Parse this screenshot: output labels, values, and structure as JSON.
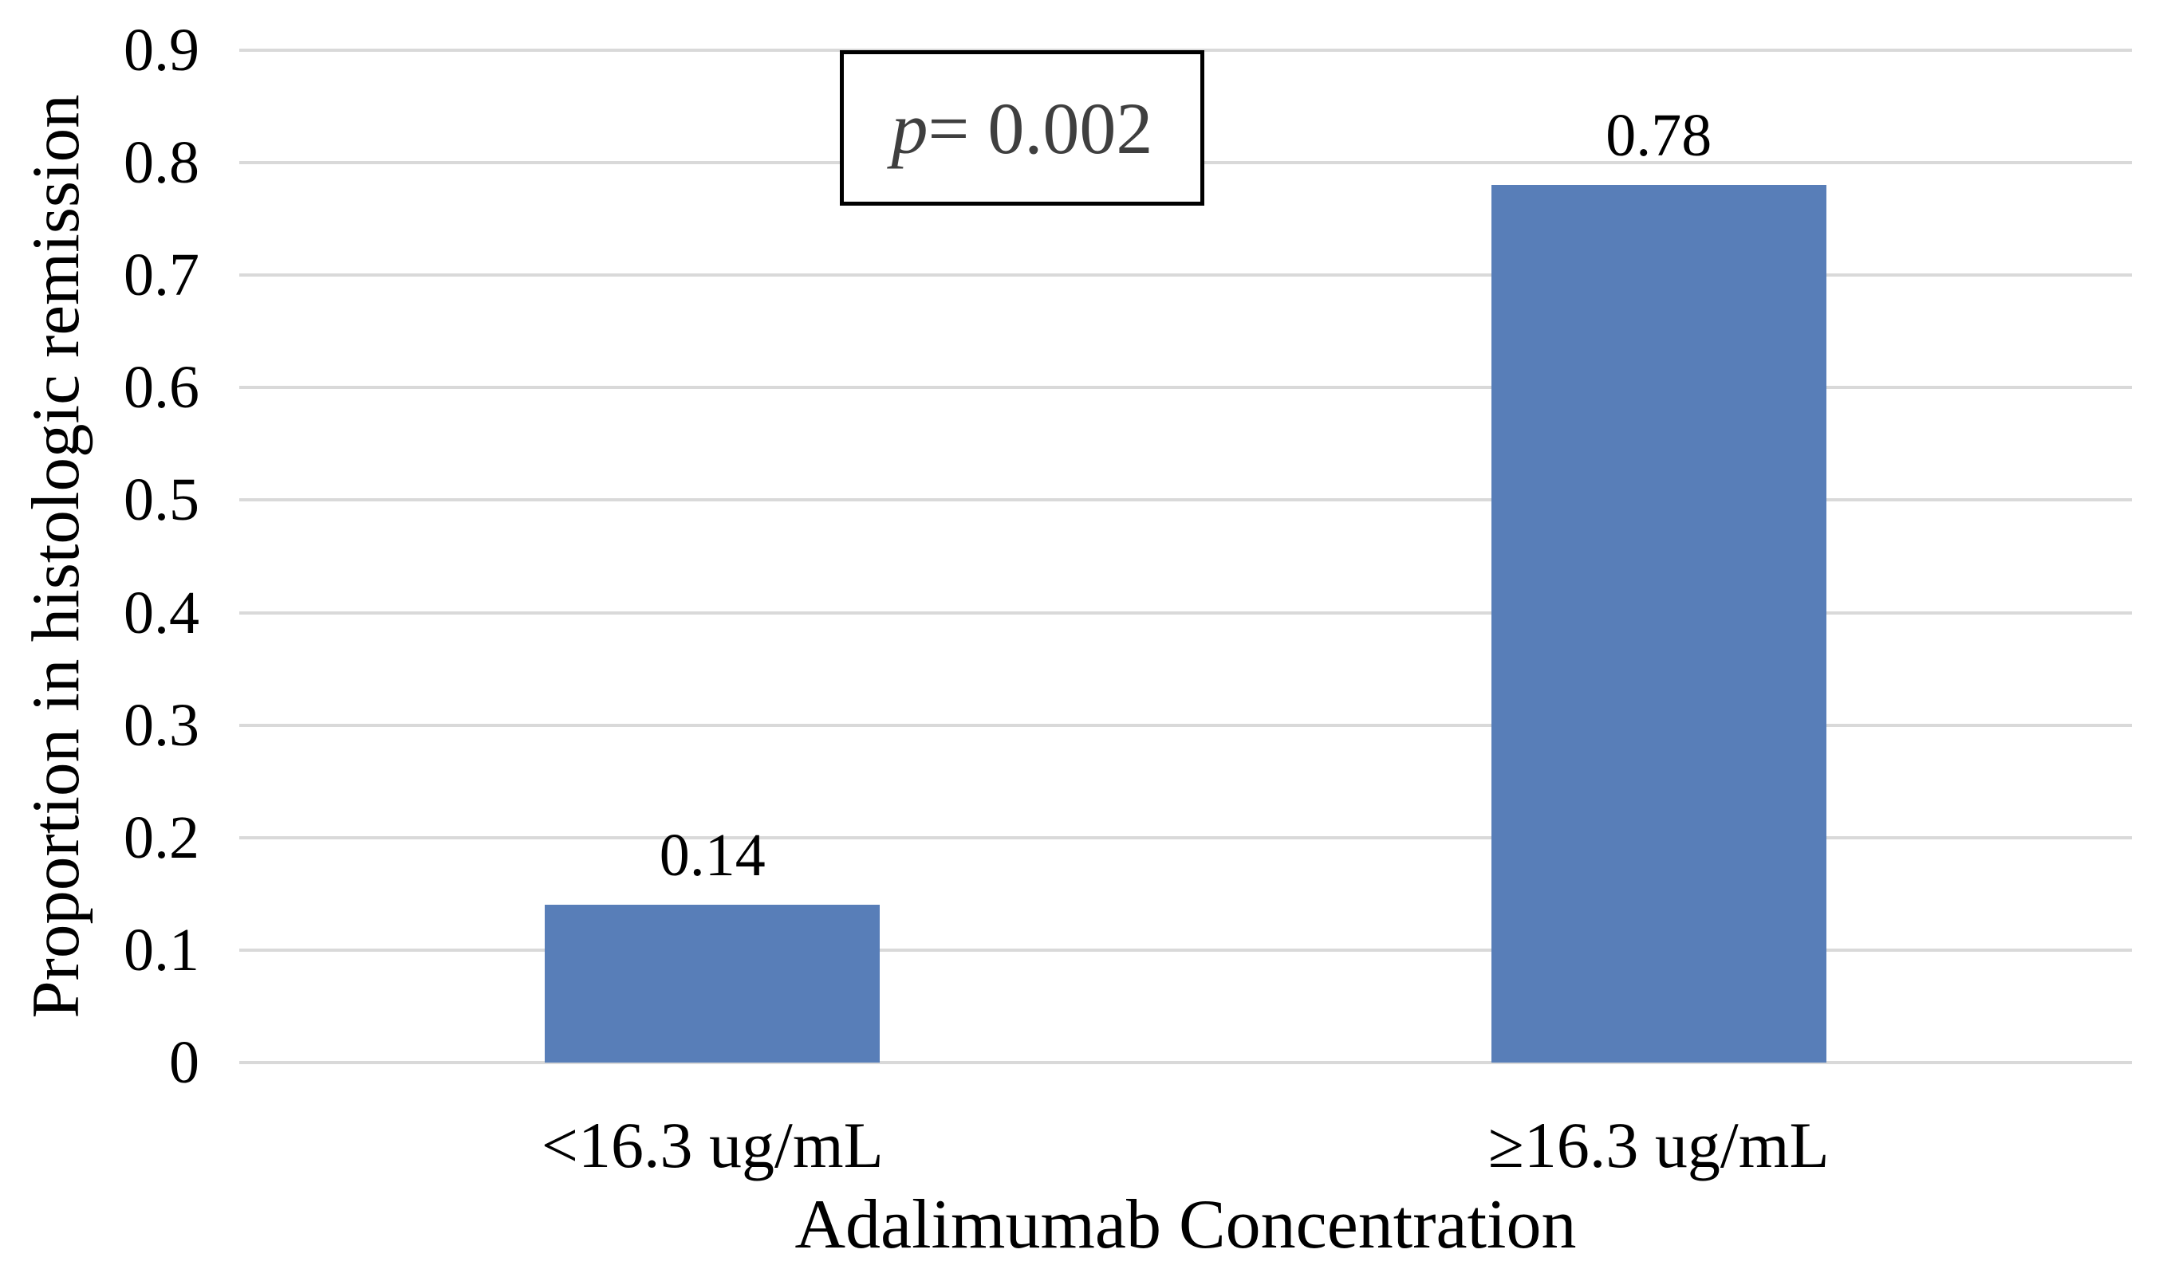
{
  "chart_data": {
    "type": "bar",
    "title": "",
    "categories": [
      "<16.3 ug/mL",
      "≥16.3 ug/mL"
    ],
    "values": [
      0.14,
      0.78
    ],
    "data_labels": [
      "0.14",
      "0.78"
    ],
    "xlabel": "Adalimumab Concentration",
    "ylabel": "Proportion in histologic remission",
    "ylim": [
      0,
      0.9
    ],
    "yticks": [
      0,
      0.1,
      0.2,
      0.3,
      0.4,
      0.5,
      0.6,
      0.7,
      0.8,
      0.9
    ],
    "ytick_labels": [
      "0",
      "0.1",
      "0.2",
      "0.3",
      "0.4",
      "0.5",
      "0.6",
      "0.7",
      "0.8",
      "0.9"
    ],
    "grid": true,
    "legend": "none",
    "annotation": {
      "variable": "p",
      "text": " = 0.002"
    },
    "colors": {
      "bar": "#587EB8",
      "gridline": "#D9D9D9",
      "text": "#000000",
      "annotation_text": "#3F3F3F",
      "annotation_border": "#000000",
      "background": "#FFFFFF"
    }
  }
}
